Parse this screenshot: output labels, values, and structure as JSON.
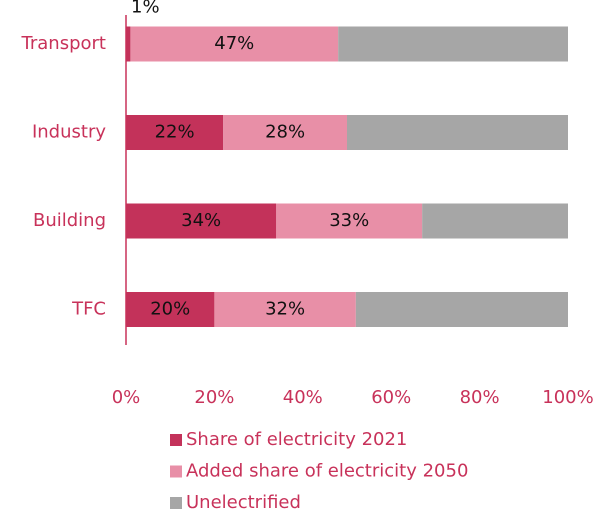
{
  "chart_data": {
    "type": "stacked-barh",
    "categories": [
      "Transport",
      "Industry",
      "Building",
      "TFC"
    ],
    "series": [
      {
        "name": "Share of electricity 2021",
        "color": "#c3325a",
        "values": [
          1,
          22,
          34,
          20
        ],
        "value_labels": [
          "1%",
          "22%",
          "34%",
          "20%"
        ]
      },
      {
        "name": "Added share of electricity 2050",
        "color": "#e88fa7",
        "values": [
          47,
          28,
          33,
          32
        ],
        "value_labels": [
          "47%",
          "28%",
          "33%",
          "32%"
        ]
      },
      {
        "name": "Unelectrified",
        "color": "#a6a6a6",
        "values": [
          52,
          50,
          33,
          48
        ]
      }
    ],
    "xlim": [
      0,
      100
    ],
    "xticks": [
      {
        "value": 0,
        "label": "0%"
      },
      {
        "value": 20,
        "label": "20%"
      },
      {
        "value": 40,
        "label": "40%"
      },
      {
        "value": 60,
        "label": "60%"
      },
      {
        "value": 80,
        "label": "80%"
      },
      {
        "value": 100,
        "label": "100%"
      }
    ],
    "axis_color": "#c8325a"
  }
}
